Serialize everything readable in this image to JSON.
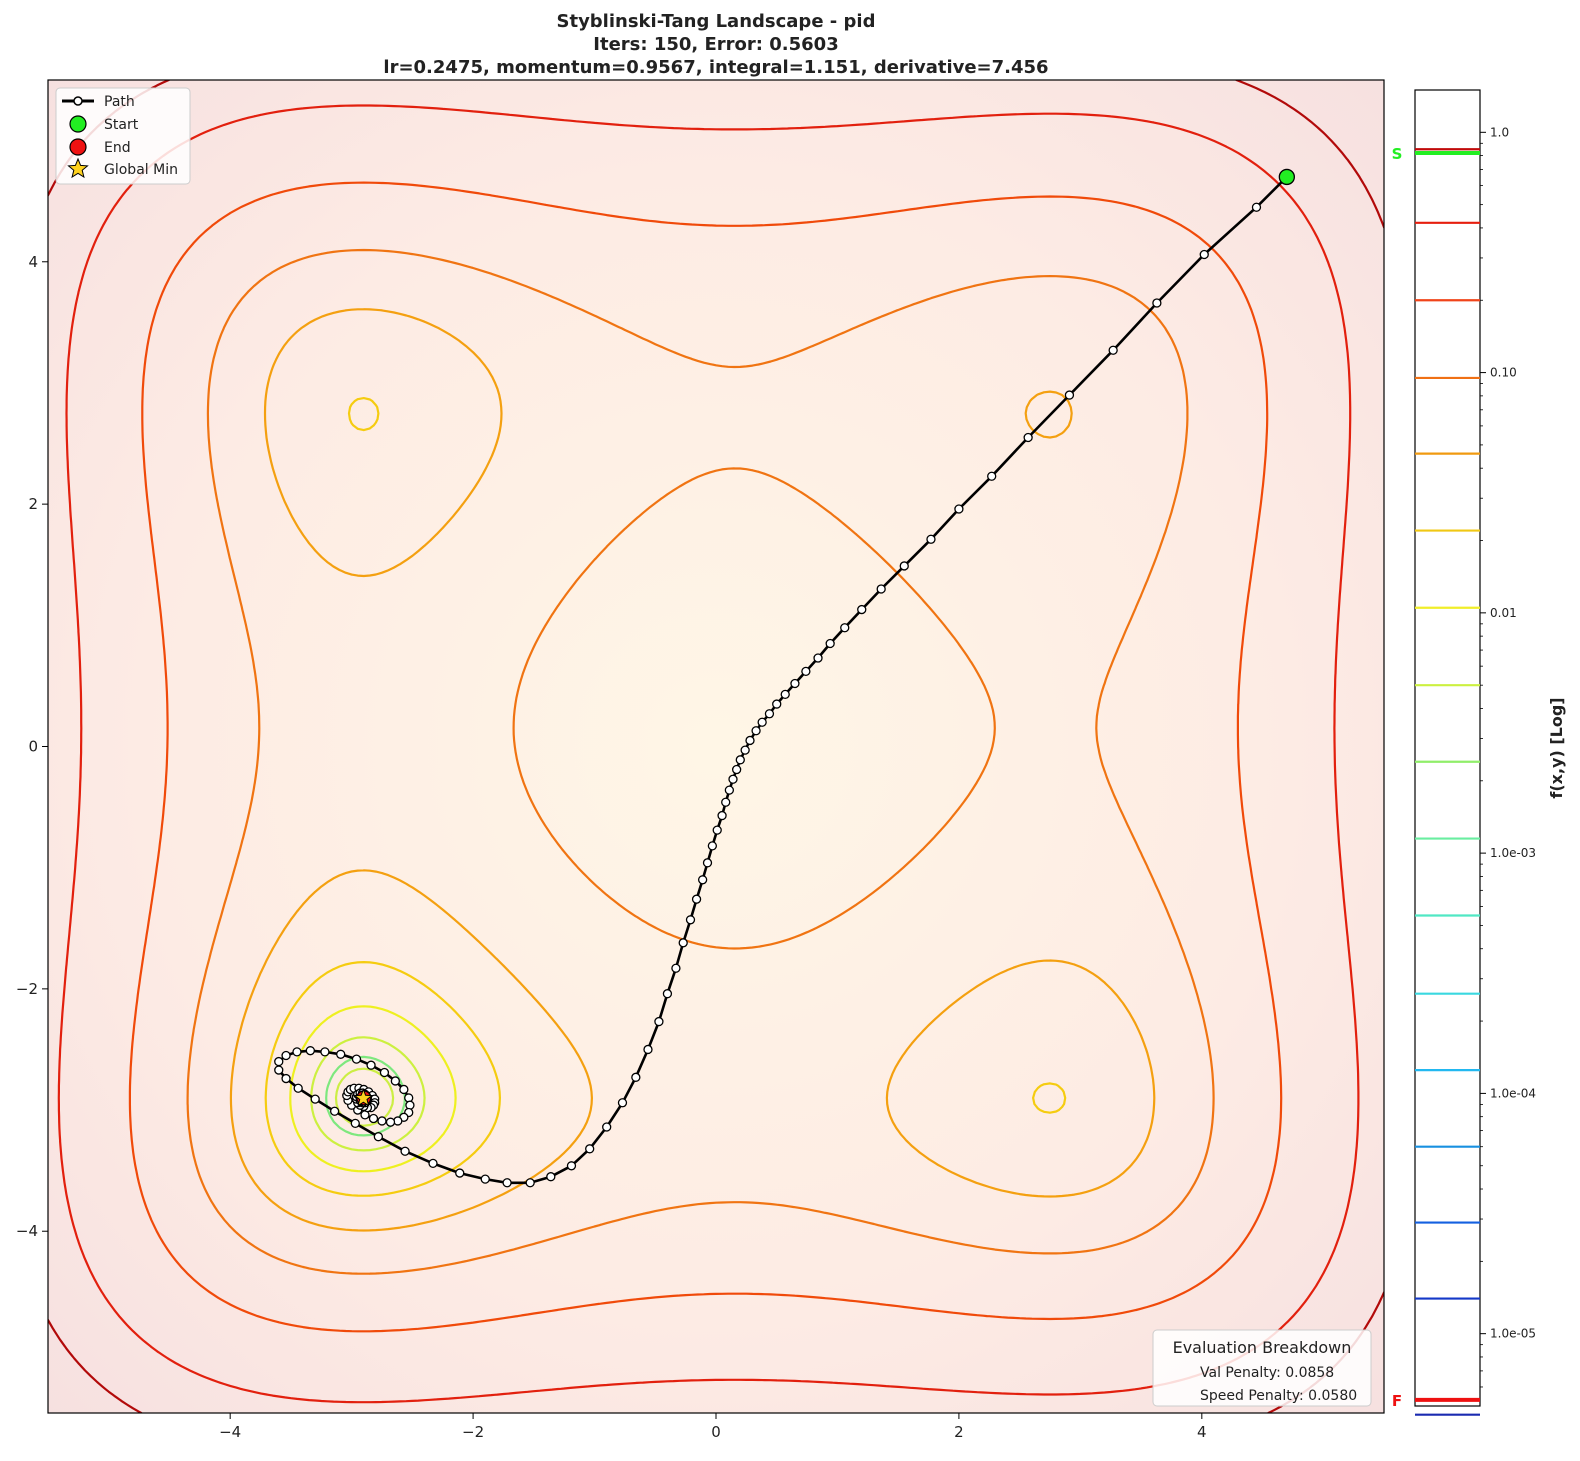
{
  "chart_data": {
    "type": "contour",
    "title_lines": [
      "Styblinski-Tang Landscape - pid",
      "Iters: 150, Error: 0.5603",
      "lr=0.2475, momentum=0.9567, integral=1.151, derivative=7.456"
    ],
    "xlim": [
      -5.5,
      5.5
    ],
    "ylim": [
      -5.5,
      5.5
    ],
    "x_ticks": [
      -4,
      -2,
      0,
      2,
      4
    ],
    "x_tick_labels": [
      "−4",
      "−2",
      "0",
      "2",
      "4"
    ],
    "y_ticks": [
      4,
      2,
      0,
      -2,
      -4
    ],
    "y_tick_labels": [
      "4",
      "2",
      "0",
      "−2",
      "−4"
    ],
    "legend": {
      "placement": "top-left",
      "entries": [
        {
          "key": "path",
          "label": "Path"
        },
        {
          "key": "start",
          "label": "Start"
        },
        {
          "key": "end",
          "label": "End"
        },
        {
          "key": "global_min",
          "label": "Global Min"
        }
      ]
    },
    "start": [
      4.7,
      4.7
    ],
    "end": [
      -2.9,
      -2.9
    ],
    "global_min": [
      -2.903534,
      -2.903534
    ],
    "path": [
      [
        4.7,
        4.7
      ],
      [
        4.45,
        4.45
      ],
      [
        4.02,
        4.06
      ],
      [
        3.63,
        3.66
      ],
      [
        3.27,
        3.27
      ],
      [
        2.91,
        2.9
      ],
      [
        2.57,
        2.55
      ],
      [
        2.27,
        2.23
      ],
      [
        2.0,
        1.96
      ],
      [
        1.77,
        1.71
      ],
      [
        1.55,
        1.49
      ],
      [
        1.36,
        1.3
      ],
      [
        1.2,
        1.13
      ],
      [
        1.06,
        0.98
      ],
      [
        0.94,
        0.85
      ],
      [
        0.84,
        0.73
      ],
      [
        0.74,
        0.62
      ],
      [
        0.65,
        0.52
      ],
      [
        0.57,
        0.43
      ],
      [
        0.5,
        0.35
      ],
      [
        0.44,
        0.27
      ],
      [
        0.38,
        0.2
      ],
      [
        0.33,
        0.13
      ],
      [
        0.28,
        0.05
      ],
      [
        0.24,
        -0.03
      ],
      [
        0.2,
        -0.11
      ],
      [
        0.17,
        -0.19
      ],
      [
        0.14,
        -0.27
      ],
      [
        0.11,
        -0.36
      ],
      [
        0.08,
        -0.46
      ],
      [
        0.05,
        -0.57
      ],
      [
        0.01,
        -0.69
      ],
      [
        -0.03,
        -0.82
      ],
      [
        -0.07,
        -0.96
      ],
      [
        -0.11,
        -1.1
      ],
      [
        -0.16,
        -1.26
      ],
      [
        -0.21,
        -1.43
      ],
      [
        -0.27,
        -1.62
      ],
      [
        -0.33,
        -1.83
      ],
      [
        -0.4,
        -2.04
      ],
      [
        -0.47,
        -2.27
      ],
      [
        -0.56,
        -2.5
      ],
      [
        -0.66,
        -2.73
      ],
      [
        -0.77,
        -2.94
      ],
      [
        -0.9,
        -3.14
      ],
      [
        -1.04,
        -3.32
      ],
      [
        -1.19,
        -3.46
      ],
      [
        -1.36,
        -3.55
      ],
      [
        -1.53,
        -3.6
      ],
      [
        -1.72,
        -3.6
      ],
      [
        -1.9,
        -3.57
      ],
      [
        -2.11,
        -3.52
      ],
      [
        -2.33,
        -3.44
      ],
      [
        -2.56,
        -3.34
      ],
      [
        -2.78,
        -3.22
      ],
      [
        -2.97,
        -3.11
      ],
      [
        -3.14,
        -3.01
      ],
      [
        -3.3,
        -2.91
      ],
      [
        -3.44,
        -2.82
      ],
      [
        -3.54,
        -2.74
      ],
      [
        -3.6,
        -2.67
      ],
      [
        -3.6,
        -2.6
      ],
      [
        -3.54,
        -2.55
      ],
      [
        -3.45,
        -2.52
      ],
      [
        -3.34,
        -2.51
      ],
      [
        -3.22,
        -2.52
      ],
      [
        -3.09,
        -2.54
      ],
      [
        -2.96,
        -2.58
      ],
      [
        -2.84,
        -2.63
      ],
      [
        -2.73,
        -2.69
      ],
      [
        -2.64,
        -2.76
      ],
      [
        -2.57,
        -2.83
      ],
      [
        -2.53,
        -2.9
      ],
      [
        -2.52,
        -2.96
      ],
      [
        -2.53,
        -3.02
      ],
      [
        -2.57,
        -3.06
      ],
      [
        -2.62,
        -3.09
      ],
      [
        -2.68,
        -3.1
      ],
      [
        -2.75,
        -3.09
      ],
      [
        -2.82,
        -3.07
      ],
      [
        -2.89,
        -3.04
      ],
      [
        -2.95,
        -3.0
      ],
      [
        -3.0,
        -2.96
      ],
      [
        -3.03,
        -2.92
      ],
      [
        -3.04,
        -2.88
      ],
      [
        -3.03,
        -2.85
      ],
      [
        -3.01,
        -2.83
      ],
      [
        -2.98,
        -2.82
      ],
      [
        -2.94,
        -2.82
      ],
      [
        -2.9,
        -2.83
      ],
      [
        -2.86,
        -2.85
      ],
      [
        -2.83,
        -2.88
      ],
      [
        -2.81,
        -2.91
      ],
      [
        -2.81,
        -2.94
      ],
      [
        -2.82,
        -2.96
      ],
      [
        -2.84,
        -2.98
      ],
      [
        -2.87,
        -2.98
      ],
      [
        -2.9,
        -2.97
      ],
      [
        -2.93,
        -2.96
      ],
      [
        -2.95,
        -2.94
      ],
      [
        -2.96,
        -2.91
      ],
      [
        -2.96,
        -2.89
      ],
      [
        -2.95,
        -2.87
      ],
      [
        -2.93,
        -2.86
      ],
      [
        -2.91,
        -2.86
      ],
      [
        -2.89,
        -2.87
      ],
      [
        -2.88,
        -2.88
      ],
      [
        -2.87,
        -2.9
      ],
      [
        -2.87,
        -2.92
      ],
      [
        -2.88,
        -2.93
      ],
      [
        -2.89,
        -2.94
      ],
      [
        -2.91,
        -2.94
      ],
      [
        -2.92,
        -2.93
      ],
      [
        -2.93,
        -2.92
      ],
      [
        -2.93,
        -2.9
      ],
      [
        -2.92,
        -2.89
      ],
      [
        -2.91,
        -2.89
      ],
      [
        -2.9,
        -2.89
      ],
      [
        -2.9,
        -2.9
      ],
      [
        -2.9,
        -2.91
      ],
      [
        -2.9,
        -2.91
      ],
      [
        -2.91,
        -2.91
      ],
      [
        -2.91,
        -2.9
      ],
      [
        -2.9,
        -2.9
      ],
      [
        -2.9,
        -2.9
      ]
    ],
    "contour_levels": [
      0.0,
      7.4e-05,
      0.00024,
      0.0024,
      0.0045,
      0.0092,
      0.019,
      0.036,
      0.072,
      0.14,
      0.28,
      0.55,
      0.85
    ],
    "contour_colors": [
      "#ccee44",
      "#7ee87e",
      "#ccf040",
      "#eef020",
      "#f5cc10",
      "#f4a010",
      "#f07412",
      "#f04a0a",
      "#e2200e",
      "#b20a0a"
    ],
    "colorbar": {
      "label": "f(x,y) [Log]",
      "scale": "log",
      "range": [
        5e-06,
        1.5
      ],
      "major_ticks": [
        1.0,
        0.1,
        0.01,
        0.001,
        0.0001,
        1e-05
      ],
      "major_tick_labels": [
        "1.0",
        "0.10",
        "0.01",
        "1.0e-03",
        "1.0e-04",
        "1.0e-05"
      ],
      "level_lines": [
        {
          "value": 0.85,
          "color": "#c00a0a"
        },
        {
          "value": 0.42,
          "color": "#e61e0e"
        },
        {
          "value": 0.2,
          "color": "#f0441a"
        },
        {
          "value": 0.095,
          "color": "#f07014"
        },
        {
          "value": 0.046,
          "color": "#f09a10"
        },
        {
          "value": 0.022,
          "color": "#f0c814"
        },
        {
          "value": 0.0105,
          "color": "#f0ee2a"
        },
        {
          "value": 0.005,
          "color": "#ccf040"
        },
        {
          "value": 0.0024,
          "color": "#90ee6a"
        },
        {
          "value": 0.00115,
          "color": "#6aeea0"
        },
        {
          "value": 0.00055,
          "color": "#50e8c4"
        },
        {
          "value": 0.00026,
          "color": "#3ad8e0"
        },
        {
          "value": 0.000125,
          "color": "#22b8f0"
        },
        {
          "value": 6e-05,
          "color": "#1890e0"
        },
        {
          "value": 2.9e-05,
          "color": "#1460e0"
        },
        {
          "value": 1.4e-05,
          "color": "#1438c8"
        },
        {
          "value": 4.6e-06,
          "color": "#1a2ab0"
        },
        {
          "value": 2.2e-06,
          "color": "#1a1a98"
        }
      ],
      "markers": [
        {
          "label": "S",
          "value": 0.82,
          "color": "#22ee22"
        },
        {
          "label": "F",
          "value": 5.3e-06,
          "color": "#ee1111"
        }
      ]
    },
    "evaluation_breakdown": {
      "title": "Evaluation Breakdown",
      "items": [
        "Val Penalty: 0.0858",
        "Speed Penalty: 0.0580"
      ]
    }
  }
}
